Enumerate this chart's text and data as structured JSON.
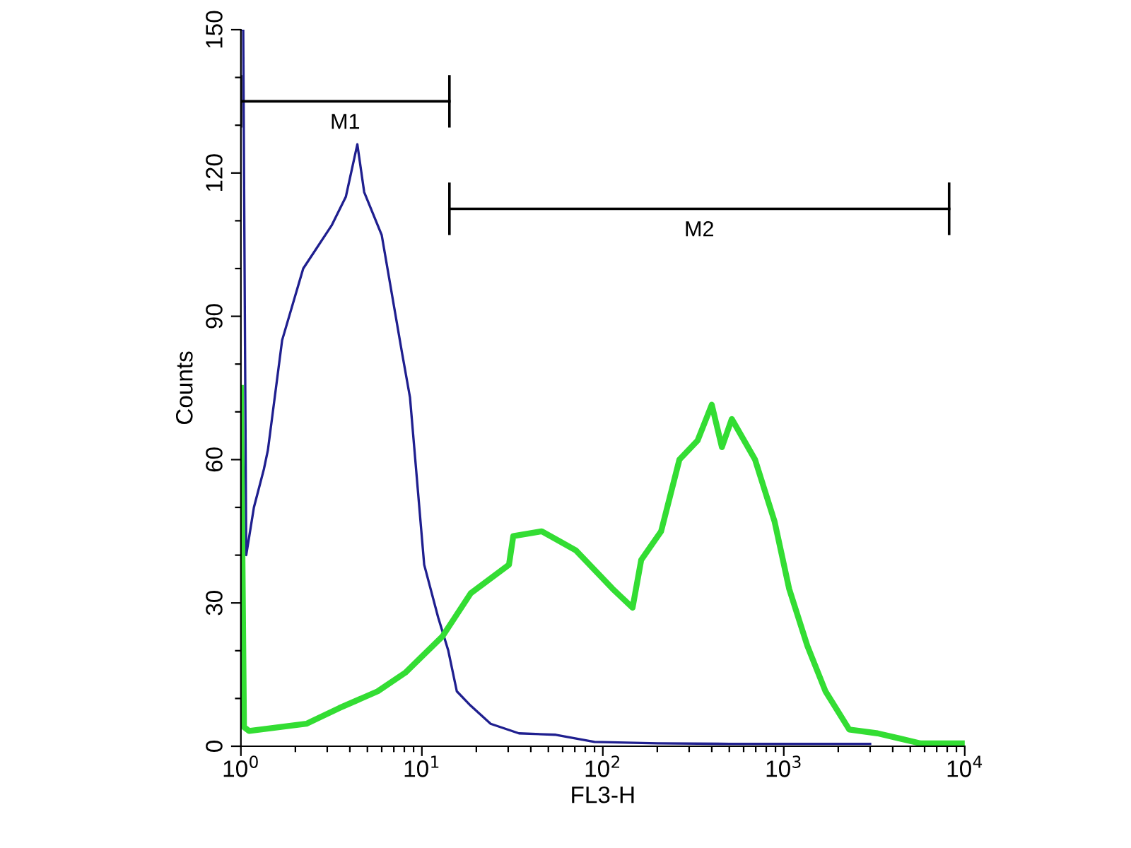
{
  "chart_data": {
    "type": "line",
    "xlabel": "FL3-H",
    "ylabel": "Counts",
    "log": "x",
    "grid": false,
    "xlim": [
      1,
      10000
    ],
    "ylim": [
      0,
      150
    ],
    "xticks": [
      {
        "value": 1,
        "label": "10$^{0}$"
      },
      {
        "value": 2,
        "label": null
      },
      {
        "value": 3,
        "label": null
      },
      {
        "value": 4,
        "label": null
      },
      {
        "value": 5,
        "label": null
      },
      {
        "value": 6,
        "label": null
      },
      {
        "value": 7,
        "label": null
      },
      {
        "value": 8,
        "label": null
      },
      {
        "value": 9,
        "label": null
      },
      {
        "value": 10,
        "label": "10$^{1}$"
      },
      {
        "value": 20,
        "label": null
      },
      {
        "value": 30,
        "label": null
      },
      {
        "value": 40,
        "label": null
      },
      {
        "value": 50,
        "label": null
      },
      {
        "value": 60,
        "label": null
      },
      {
        "value": 70,
        "label": null
      },
      {
        "value": 80,
        "label": null
      },
      {
        "value": 90,
        "label": null
      },
      {
        "value": 100,
        "label": "10$^{2}$"
      },
      {
        "value": 200,
        "label": null
      },
      {
        "value": 300,
        "label": null
      },
      {
        "value": 400,
        "label": null
      },
      {
        "value": 500,
        "label": null
      },
      {
        "value": 600,
        "label": null
      },
      {
        "value": 700,
        "label": null
      },
      {
        "value": 800,
        "label": null
      },
      {
        "value": 900,
        "label": null
      },
      {
        "value": 1000,
        "label": "10$^{3}$"
      },
      {
        "value": 2000,
        "label": null
      },
      {
        "value": 3000,
        "label": null
      },
      {
        "value": 4000,
        "label": null
      },
      {
        "value": 5000,
        "label": null
      },
      {
        "value": 6000,
        "label": null
      },
      {
        "value": 7000,
        "label": null
      },
      {
        "value": 8000,
        "label": null
      },
      {
        "value": 9000,
        "label": null
      },
      {
        "value": 10000,
        "label": "10$^{4}$"
      }
    ],
    "yticks": [
      0,
      {
        "value": 10,
        "label": null
      },
      {
        "value": 20,
        "label": null
      },
      30,
      {
        "value": 40,
        "label": null
      },
      {
        "value": 50,
        "label": null
      },
      60,
      {
        "value": 70,
        "label": null
      },
      {
        "value": 80,
        "label": null
      },
      90,
      {
        "value": 100,
        "label": null
      },
      {
        "value": 110,
        "label": null
      },
      120,
      {
        "value": 130,
        "label": null
      },
      {
        "value": 140,
        "label": null
      },
      150
    ],
    "series": [
      {
        "color": "#1f1f8f",
        "x": [
          1,
          1.03,
          1.07,
          1.18,
          1.34,
          1.41,
          1.69,
          2.21,
          3.17,
          3.8,
          4.4,
          4.8,
          6.0,
          7.8,
          8.6,
          10.3,
          12.3,
          14,
          15.6,
          18.6,
          24,
          34.4,
          55,
          90,
          200,
          500,
          1000,
          3000
        ],
        "values": [
          150,
          150,
          40,
          50,
          58,
          62,
          85,
          100,
          109,
          115,
          126,
          116,
          107,
          82,
          73,
          38,
          27,
          20,
          11.5,
          8.5,
          4.7,
          2.7,
          2.4,
          0.9,
          0.6,
          0.5,
          0.5,
          0.5
        ]
      },
      {
        "color": "#33dd33",
        "x": [
          1,
          1.04,
          1.11,
          2.3,
          3.5,
          5.7,
          8.1,
          13,
          18.6,
          30.3,
          32,
          46,
          71,
          113,
          146,
          163,
          210,
          265,
          334,
          400,
          455,
          516,
          694,
          890,
          1070,
          1350,
          1700,
          2300,
          3300,
          5700,
          9800
        ],
        "values": [
          75,
          4,
          3.2,
          4.7,
          8,
          11.5,
          15.4,
          23,
          32,
          38,
          44,
          45,
          41,
          33,
          29,
          39,
          45,
          60,
          64,
          71.5,
          62.6,
          68.5,
          60,
          47,
          33,
          21,
          11.5,
          3.5,
          2.7,
          0.6,
          0.6
        ]
      },
      {
        "name": "M1",
        "color": "#000000",
        "x": [
          1,
          14.2
        ],
        "values": [
          135,
          135
        ],
        "errors": [
          5.5,
          5.5
        ]
      },
      {
        "name": "M2",
        "color": "#000000",
        "x": [
          14.2,
          8200
        ],
        "values": [
          112.5,
          112.5
        ],
        "errors": [
          5.5,
          5.5
        ]
      }
    ]
  }
}
